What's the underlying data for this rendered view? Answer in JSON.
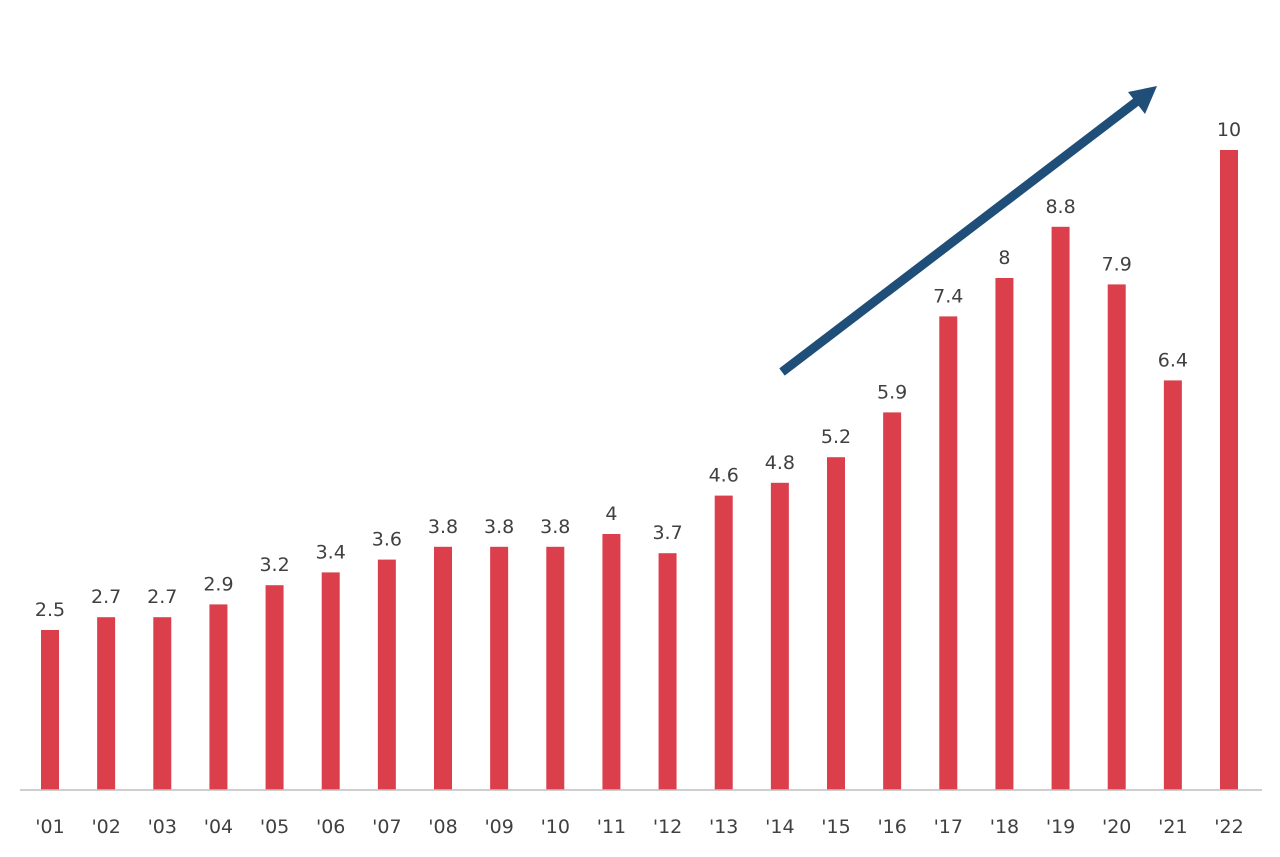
{
  "chart_data": {
    "type": "bar",
    "title": "",
    "xlabel": "",
    "ylabel": "",
    "categories": [
      "'01",
      "'02",
      "'03",
      "'04",
      "'05",
      "'06",
      "'07",
      "'08",
      "'09",
      "'10",
      "'11",
      "'12",
      "'13",
      "'14",
      "'15",
      "'16",
      "'17",
      "'18",
      "'19",
      "'20",
      "'21",
      "'22"
    ],
    "values": [
      2.5,
      2.7,
      2.7,
      2.9,
      3.2,
      3.4,
      3.6,
      3.8,
      3.8,
      3.8,
      4,
      3.7,
      4.6,
      4.8,
      5.2,
      5.9,
      7.4,
      8,
      8.8,
      7.9,
      6.4,
      10
    ],
    "ylim": [
      0,
      12.3
    ],
    "grid": false,
    "data_labels": true,
    "annotation": {
      "type": "trend-arrow",
      "from_category": "'14",
      "to_category": "'21"
    },
    "colors": {
      "bar": "#dc3f4c",
      "arrow": "#1f4e79",
      "axis": "#bfbfbf",
      "text": "#404040"
    }
  }
}
